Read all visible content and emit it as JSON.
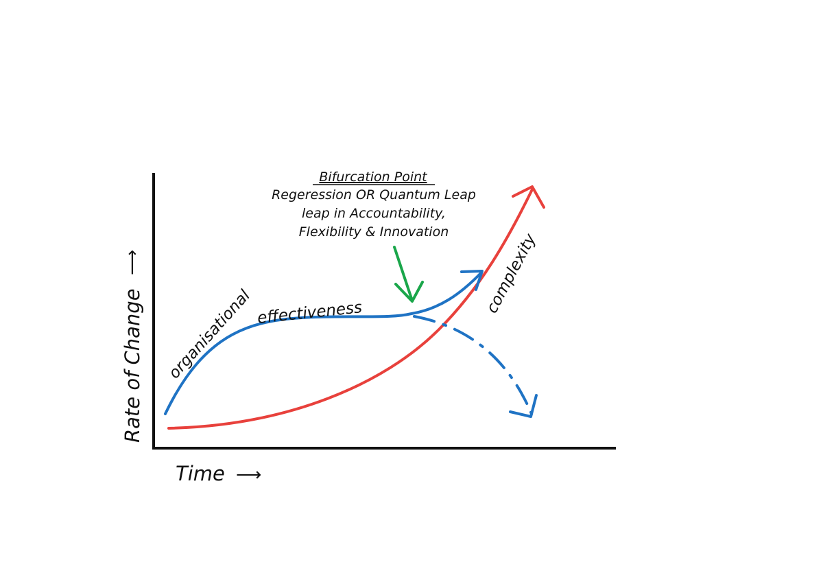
{
  "diagram": {
    "bifurcation": {
      "title": "Bifurcation Point",
      "line1": "Regeression OR Quantum Leap",
      "line2": "leap in Accountability,",
      "line3": "Flexibility & Innovation"
    },
    "curves": {
      "effectiveness_label": "organisational effectiveness",
      "complexity_label": "complexity"
    },
    "axes": {
      "y_label": "Rate of Change",
      "x_label": "Time",
      "y_arrow_glyph": "⟶",
      "x_arrow_glyph": "⟶"
    },
    "colors": {
      "axis": "#111111",
      "effectiveness": "#1f73c4",
      "complexity": "#e8413c",
      "pointer": "#1aa64a",
      "text": "#111111"
    }
  }
}
